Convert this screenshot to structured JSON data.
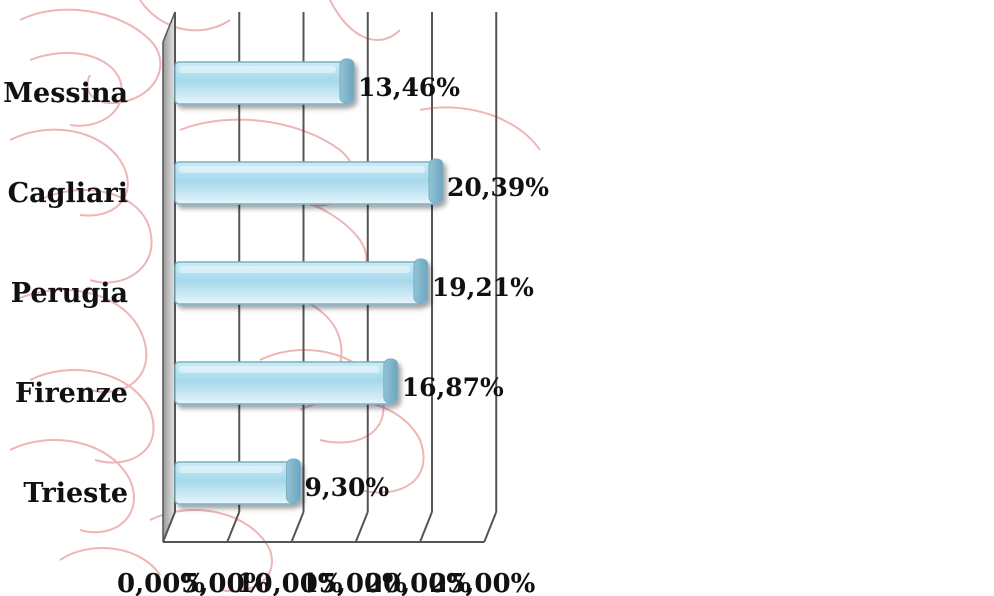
{
  "chart_data": {
    "type": "bar",
    "orientation": "horizontal",
    "categories": [
      "Messina",
      "Cagliari",
      "Perugia",
      "Firenze",
      "Trieste"
    ],
    "values": [
      13.46,
      20.39,
      19.21,
      16.87,
      9.3
    ],
    "value_labels": [
      "13,46%",
      "20,39%",
      "19,21%",
      "16,87%",
      "9,30%"
    ],
    "x_ticks": [
      "0,00%",
      "5,00%",
      "10,00%",
      "15,00%",
      "20,00%",
      "25,00%"
    ],
    "xlim": [
      0,
      25
    ],
    "grid": true,
    "style": "3d",
    "bar_color": "#a9d9ea",
    "bar_edge_color": "#7aaec4",
    "gridline_color": "#555555",
    "background_watermark": "red line-art heraldic eagle"
  }
}
